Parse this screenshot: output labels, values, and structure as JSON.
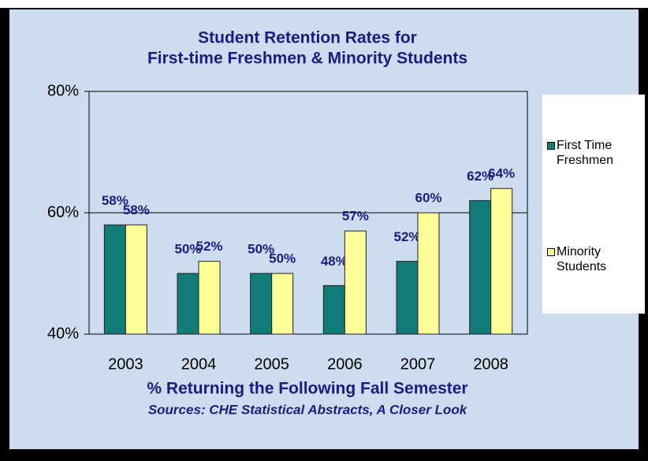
{
  "chart_data": {
    "type": "bar",
    "title": [
      "Student Retention Rates for",
      "First-time Freshmen & Minority Students"
    ],
    "x_label": "% Returning the Following Fall Semester",
    "annotation": "Sources: CHE Statistical Abstracts, A Closer Look",
    "categories": [
      "2003",
      "2004",
      "2005",
      "2006",
      "2007",
      "2008"
    ],
    "series": [
      {
        "name": "First Time Freshmen",
        "color": "#127c78",
        "values": [
          58,
          50,
          50,
          48,
          52,
          62
        ],
        "value_labels": [
          "58%",
          "50%",
          "50%",
          "48%",
          "52%",
          "62%"
        ]
      },
      {
        "name": "Minority Students",
        "color": "#ffff99",
        "values": [
          58,
          52,
          50,
          57,
          60,
          64
        ],
        "value_labels": [
          "58%",
          "52%",
          "50%",
          "57%",
          "60%",
          "64%"
        ]
      }
    ],
    "ylim": [
      40,
      80
    ],
    "yticks": [
      {
        "value": 40,
        "label": "40%"
      },
      {
        "value": 60,
        "label": "60%"
      },
      {
        "value": 80,
        "label": "80%"
      }
    ],
    "grid": true,
    "legend": "right"
  }
}
